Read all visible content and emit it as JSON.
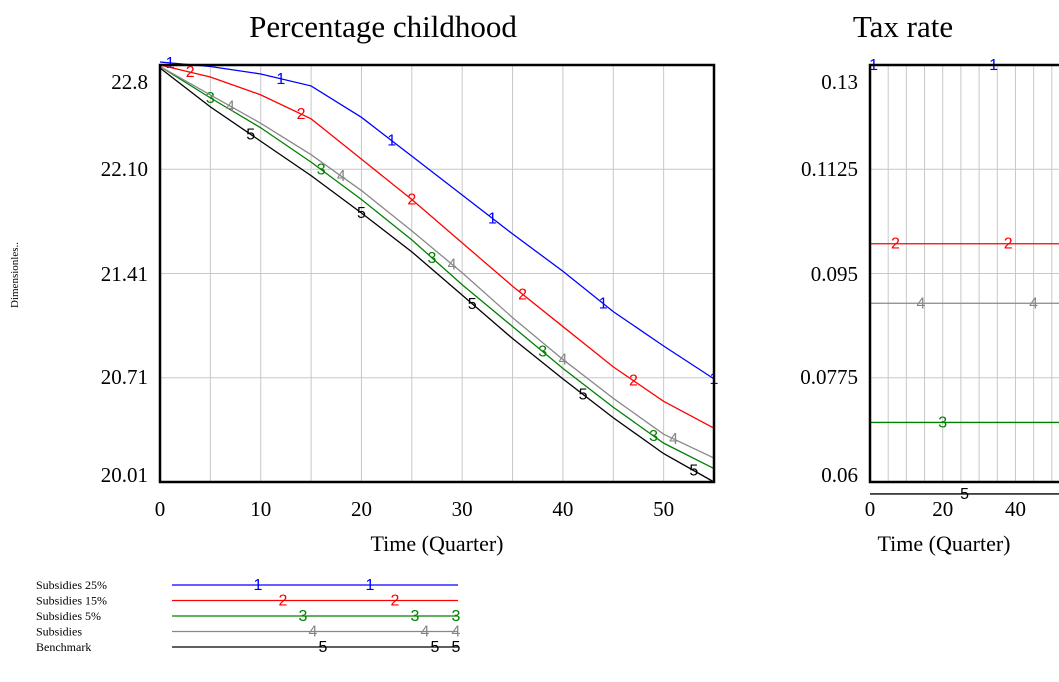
{
  "chart_data": [
    {
      "type": "line",
      "title": "Percentage childhood",
      "xlabel": "Time (Quarter)",
      "ylabel": "Dimensionles..",
      "xlim": [
        0,
        55
      ],
      "ylim": [
        20.01,
        22.8
      ],
      "x_ticks": [
        "0",
        "10",
        "20",
        "30",
        "40",
        "50"
      ],
      "y_ticks": [
        "22.8",
        "22.10",
        "21.41",
        "20.71",
        "20.01"
      ],
      "grid": true,
      "series": [
        {
          "marker": "1",
          "color": "#0000ff",
          "x": [
            0,
            5,
            10,
            15,
            20,
            25,
            30,
            35,
            40,
            45,
            50,
            55
          ],
          "y": [
            22.82,
            22.79,
            22.74,
            22.66,
            22.45,
            22.19,
            21.93,
            21.67,
            21.42,
            21.15,
            20.92,
            20.7
          ]
        },
        {
          "marker": "2",
          "color": "#ff0000",
          "x": [
            0,
            5,
            10,
            15,
            20,
            25,
            30,
            35,
            40,
            45,
            50,
            55
          ],
          "y": [
            22.8,
            22.72,
            22.6,
            22.44,
            22.17,
            21.9,
            21.61,
            21.32,
            21.05,
            20.78,
            20.55,
            20.37
          ]
        },
        {
          "marker": "3",
          "color": "#008000",
          "x": [
            0,
            5,
            10,
            15,
            20,
            25,
            30,
            35,
            40,
            45,
            50,
            55
          ],
          "y": [
            22.79,
            22.58,
            22.38,
            22.15,
            21.9,
            21.63,
            21.33,
            21.05,
            20.77,
            20.51,
            20.27,
            20.1
          ]
        },
        {
          "marker": "4",
          "color": "#888888",
          "x": [
            0,
            5,
            10,
            15,
            20,
            25,
            30,
            35,
            40,
            45,
            50,
            55
          ],
          "y": [
            22.79,
            22.6,
            22.41,
            22.2,
            21.96,
            21.69,
            21.41,
            21.11,
            20.83,
            20.57,
            20.33,
            20.17
          ]
        },
        {
          "marker": "5",
          "color": "#000000",
          "x": [
            0,
            5,
            10,
            15,
            20,
            25,
            30,
            35,
            40,
            45,
            50,
            55
          ],
          "y": [
            22.78,
            22.52,
            22.29,
            22.06,
            21.81,
            21.55,
            21.26,
            20.97,
            20.7,
            20.44,
            20.2,
            20.01
          ]
        }
      ]
    },
    {
      "type": "line",
      "title": "Tax rate",
      "xlabel": "Time (Quarter)",
      "xlim": [
        0,
        55
      ],
      "ylim": [
        0.06,
        0.13
      ],
      "x_ticks": [
        "0",
        "20",
        "40"
      ],
      "y_ticks": [
        "0.13",
        "0.1125",
        "0.095",
        "0.0775",
        "0.06"
      ],
      "grid": true,
      "series": [
        {
          "marker": "1",
          "color": "#0000ff",
          "x": [
            0,
            55
          ],
          "y": [
            0.13,
            0.13
          ]
        },
        {
          "marker": "2",
          "color": "#ff0000",
          "x": [
            0,
            55
          ],
          "y": [
            0.1,
            0.1
          ]
        },
        {
          "marker": "4",
          "color": "#888888",
          "x": [
            0,
            55
          ],
          "y": [
            0.09,
            0.09
          ]
        },
        {
          "marker": "3",
          "color": "#008000",
          "x": [
            0,
            55
          ],
          "y": [
            0.07,
            0.07
          ]
        },
        {
          "marker": "5",
          "color": "#000000",
          "x": [
            0,
            55
          ],
          "y": [
            0.058,
            0.058
          ]
        }
      ]
    }
  ],
  "legend": [
    {
      "label": "Subsidies 25%",
      "marker": "1",
      "color": "#0000ff"
    },
    {
      "label": "Subsidies 15%",
      "marker": "2",
      "color": "#ff0000"
    },
    {
      "label": "Subsidies 5%",
      "marker": "3",
      "color": "#008000"
    },
    {
      "label": "Subsidies",
      "marker": "4",
      "color": "#888888"
    },
    {
      "label": "Benchmark",
      "marker": "5",
      "color": "#000000"
    }
  ]
}
